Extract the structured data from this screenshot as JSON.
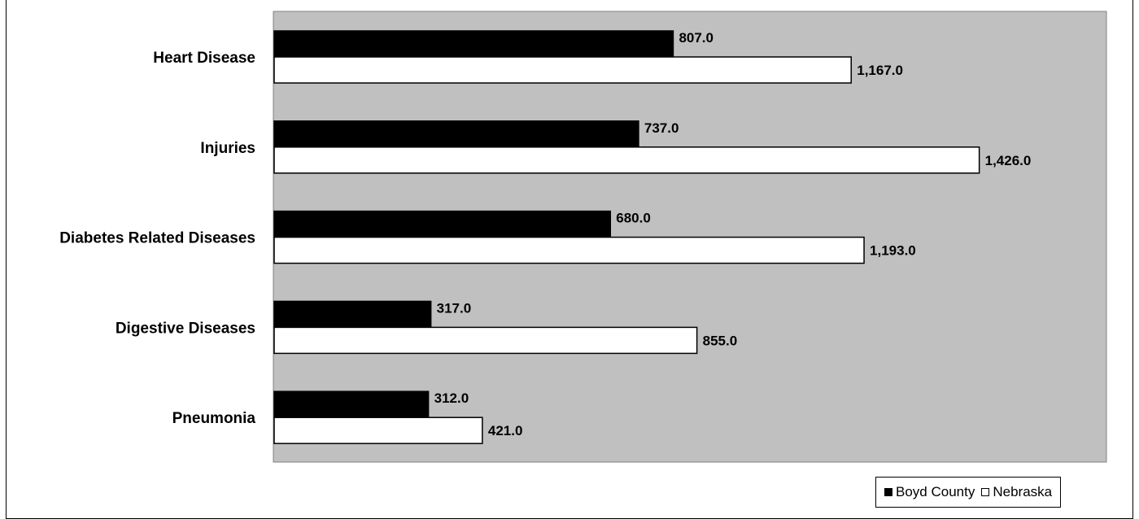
{
  "chart_data": {
    "type": "bar",
    "orientation": "horizontal",
    "title": "",
    "xlabel": "",
    "ylabel": "",
    "categories": [
      "Heart Disease",
      "Injuries",
      "Diabetes Related Diseases",
      "Digestive Diseases",
      "Pneumonia"
    ],
    "series": [
      {
        "name": "Boyd County",
        "values": [
          807.0,
          737.0,
          680.0,
          317.0,
          312.0
        ],
        "labels": [
          "807.0",
          "737.0",
          "680.0",
          "317.0",
          "312.0"
        ],
        "color": "#000000"
      },
      {
        "name": "Nebraska",
        "values": [
          1167.0,
          1426.0,
          1193.0,
          855.0,
          421.0
        ],
        "labels": [
          "1,167.0",
          "1,426.0",
          "1,193.0",
          "855.0",
          "421.0"
        ],
        "color": "#ffffff"
      }
    ],
    "xlim": [
      0,
      1550
    ],
    "grid": false,
    "plot_background": "#c0c0c0",
    "legend_position": "bottom-right"
  }
}
